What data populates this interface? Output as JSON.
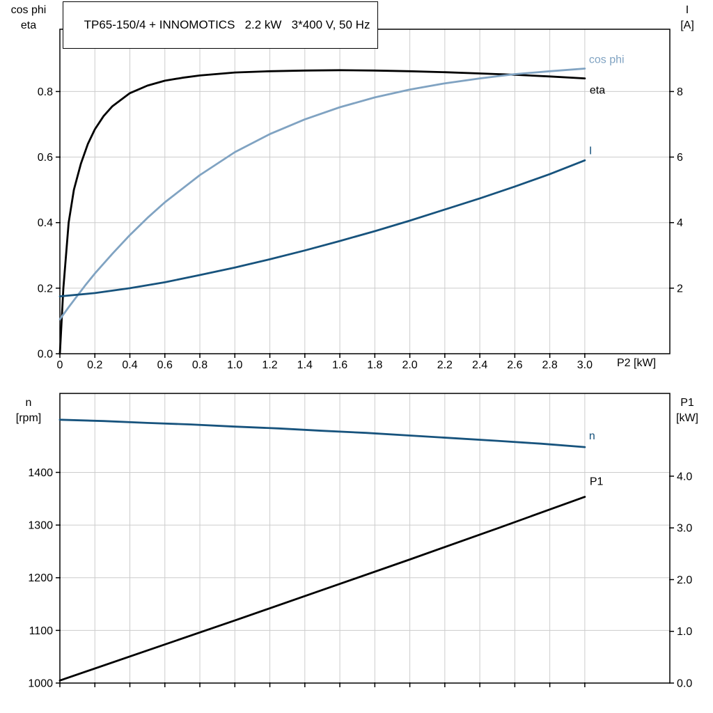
{
  "title_box": {
    "text": "TP65-150/4 + INNOMOTICS   2.2 kW   3*400 V, 50 Hz"
  },
  "colors": {
    "grid": "#cccccc",
    "frame": "#000000",
    "tick_text": "#000000",
    "background": "#ffffff",
    "eta": "#000000",
    "cos_phi": "#80a3c2",
    "current": "#17537d",
    "speed": "#17537d",
    "p1": "#000000"
  },
  "chart_data": [
    {
      "type": "line",
      "x_axis": {
        "label": "P2 [kW]",
        "range": [
          0,
          3.486
        ],
        "tick_values": [
          0,
          0.2,
          0.4,
          0.6,
          0.8,
          1.0,
          1.2,
          1.4,
          1.6,
          1.8,
          2.0,
          2.2,
          2.4,
          2.6,
          2.8,
          3.0
        ],
        "tick_labels": [
          "0",
          "0.2",
          "0.4",
          "0.6",
          "0.8",
          "1.0",
          "1.2",
          "1.4",
          "1.6",
          "1.8",
          "2.0",
          "2.2",
          "2.4",
          "2.6",
          "2.8",
          "3.0"
        ]
      },
      "left_axis": {
        "title_lines": [
          "cos phi",
          "eta"
        ],
        "range": [
          0,
          0.99
        ],
        "tick_values": [
          0,
          0.2,
          0.4,
          0.6,
          0.8
        ],
        "tick_labels": [
          "0.0",
          "0.2",
          "0.4",
          "0.6",
          "0.8"
        ]
      },
      "right_axis": {
        "title_lines": [
          "I",
          "[A]"
        ],
        "range": [
          0,
          9.9
        ],
        "tick_values": [
          2,
          4,
          6,
          8
        ],
        "tick_labels": [
          "2",
          "4",
          "6",
          "8"
        ]
      },
      "grid": true,
      "legend_position": "end-of-line-labels",
      "series": [
        {
          "name": "eta",
          "label": "eta",
          "color": "#000000",
          "axis": "left",
          "x": [
            0,
            0.02,
            0.05,
            0.08,
            0.12,
            0.16,
            0.2,
            0.25,
            0.3,
            0.4,
            0.5,
            0.6,
            0.7,
            0.8,
            1.0,
            1.2,
            1.4,
            1.6,
            1.8,
            2.0,
            2.2,
            2.4,
            2.6,
            2.8,
            3.0
          ],
          "y": [
            0,
            0.2,
            0.4,
            0.5,
            0.58,
            0.64,
            0.685,
            0.725,
            0.755,
            0.795,
            0.818,
            0.833,
            0.842,
            0.849,
            0.858,
            0.862,
            0.864,
            0.865,
            0.864,
            0.862,
            0.859,
            0.855,
            0.851,
            0.846,
            0.84
          ]
        },
        {
          "name": "cos phi",
          "label": "cos phi",
          "color": "#80a3c2",
          "axis": "left",
          "x": [
            0,
            0.05,
            0.1,
            0.15,
            0.2,
            0.3,
            0.4,
            0.5,
            0.6,
            0.8,
            1.0,
            1.2,
            1.4,
            1.6,
            1.8,
            2.0,
            2.2,
            2.4,
            2.6,
            2.8,
            3.0
          ],
          "y": [
            0.105,
            0.142,
            0.177,
            0.212,
            0.245,
            0.305,
            0.362,
            0.414,
            0.462,
            0.545,
            0.615,
            0.67,
            0.715,
            0.752,
            0.782,
            0.806,
            0.825,
            0.84,
            0.853,
            0.862,
            0.87
          ]
        },
        {
          "name": "I",
          "label": "I",
          "color": "#17537d",
          "axis": "right",
          "x": [
            0,
            0.2,
            0.4,
            0.6,
            0.8,
            1.0,
            1.2,
            1.4,
            1.6,
            1.8,
            2.0,
            2.2,
            2.4,
            2.6,
            2.8,
            3.0
          ],
          "y": [
            1.75,
            1.85,
            2.0,
            2.18,
            2.4,
            2.63,
            2.88,
            3.15,
            3.44,
            3.74,
            4.06,
            4.4,
            4.74,
            5.1,
            5.48,
            5.9
          ]
        }
      ]
    },
    {
      "type": "line",
      "x_axis": {
        "label": "",
        "range": [
          0,
          3.486
        ],
        "tick_values": [
          0,
          0.2,
          0.4,
          0.6,
          0.8,
          1.0,
          1.2,
          1.4,
          1.6,
          1.8,
          2.0,
          2.2,
          2.4,
          2.6,
          2.8,
          3.0
        ],
        "tick_labels": []
      },
      "left_axis": {
        "title_lines": [
          "n",
          "[rpm]"
        ],
        "range": [
          1000,
          1550
        ],
        "tick_values": [
          1000,
          1100,
          1200,
          1300,
          1400
        ],
        "tick_labels": [
          "1000",
          "1100",
          "1200",
          "1300",
          "1400"
        ]
      },
      "right_axis": {
        "title_lines": [
          "P1",
          "[kW]"
        ],
        "range": [
          0,
          5.6
        ],
        "tick_values": [
          0,
          1,
          2,
          3,
          4
        ],
        "tick_labels": [
          "0.0",
          "1.0",
          "2.0",
          "3.0",
          "4.0"
        ]
      },
      "grid": true,
      "legend_position": "end-of-line-labels",
      "series": [
        {
          "name": "n",
          "label": "n",
          "color": "#17537d",
          "axis": "left",
          "x": [
            0,
            0.25,
            0.5,
            0.75,
            1.0,
            1.25,
            1.5,
            1.75,
            2.0,
            2.25,
            2.5,
            2.75,
            3.0
          ],
          "y": [
            1500,
            1497.5,
            1494,
            1491,
            1487,
            1483.5,
            1479,
            1475,
            1470,
            1465,
            1460,
            1454.5,
            1448
          ]
        },
        {
          "name": "P1",
          "label": "P1",
          "color": "#000000",
          "axis": "right",
          "x": [
            0,
            0.5,
            1.0,
            1.5,
            2.0,
            2.5,
            3.0
          ],
          "y": [
            0.05,
            0.63,
            1.21,
            1.8,
            2.39,
            2.99,
            3.6
          ]
        }
      ]
    }
  ]
}
